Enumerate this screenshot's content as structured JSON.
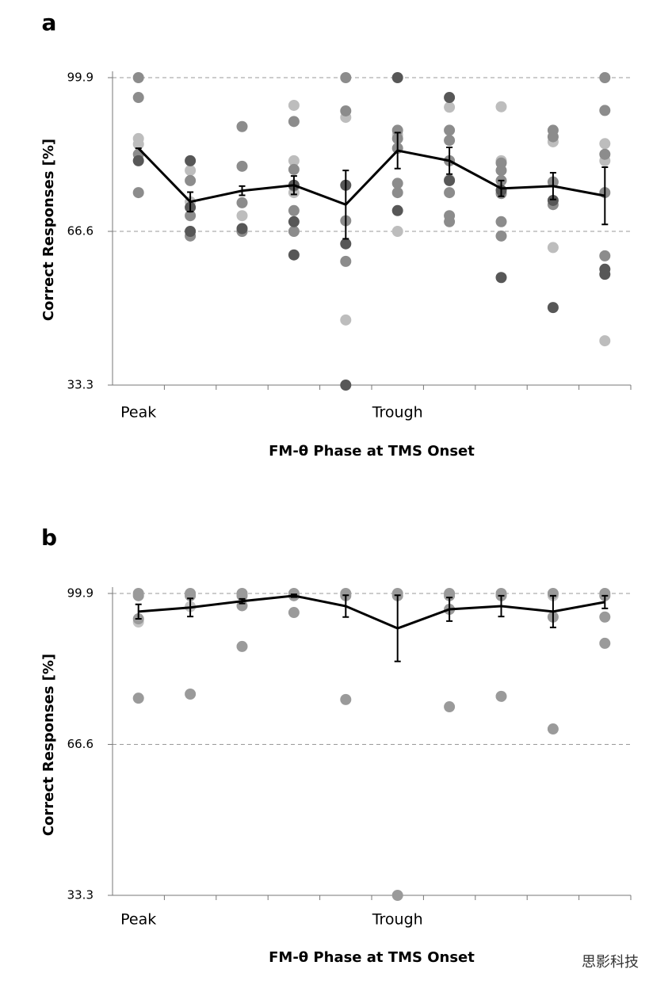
{
  "chart_data": [
    {
      "type": "line",
      "panel_label": "a",
      "x_label": "FM-θ Phase at TMS Onset",
      "y_label": "Correct Responses [%]",
      "categories": [
        "Peak",
        null,
        null,
        null,
        null,
        "Trough",
        null,
        null,
        null,
        null
      ],
      "ylim": [
        33.3,
        99.9
      ],
      "yticks": [
        33.3,
        66.6,
        99.9
      ],
      "grid": true,
      "mean": {
        "color": "#000000",
        "values": [
          84.6,
          73.0,
          75.4,
          76.6,
          72.4,
          84.1,
          81.9,
          75.9,
          76.4,
          74.3
        ],
        "errors": [
          0,
          2.1,
          1.0,
          2.0,
          7.4,
          3.9,
          2.9,
          1.7,
          2.9,
          6.2
        ]
      },
      "dots": [
        {
          "color": "#bdbdbd",
          "values": [
            [
              86.7,
              85.5
            ],
            [
              79.8,
              73.0
            ],
            [
              70.0,
              66.6
            ],
            [
              93.9,
              81.9,
              75.0
            ],
            [
              91.3,
              47.4
            ],
            [
              87.5,
              66.6
            ],
            [
              93.5,
              77.8
            ],
            [
              93.6,
              81.9
            ],
            [
              86.0,
              63.1
            ],
            [
              85.6,
              81.9,
              42.9
            ]
          ]
        },
        {
          "color": "#8c8c8c",
          "values": [
            [
              99.9,
              95.6,
              83.3,
              75.0
            ],
            [
              77.6,
              70.0,
              65.6
            ],
            [
              89.3,
              80.7,
              72.8,
              66.6
            ],
            [
              90.4,
              80.0,
              76.4,
              71.1,
              66.6
            ],
            [
              99.9,
              92.7,
              68.9,
              60.1
            ],
            [
              88.5,
              86.7,
              84.6,
              77.0,
              75.0
            ],
            [
              88.5,
              86.3,
              81.9,
              75.0,
              70.0,
              68.7
            ],
            [
              81.4,
              79.8,
              77.6,
              74.8,
              68.7,
              65.6
            ],
            [
              88.5,
              87.1,
              77.3,
              72.4
            ],
            [
              99.9,
              92.8,
              83.3,
              75.0,
              61.3
            ]
          ]
        },
        {
          "color": "#575757",
          "values": [
            [
              81.9
            ],
            [
              81.9,
              71.8,
              66.6
            ],
            [
              67.2
            ],
            [
              76.6,
              68.7,
              61.5
            ],
            [
              76.6,
              63.9,
              33.3
            ],
            [
              99.9,
              71.1
            ],
            [
              95.6,
              77.6
            ],
            [
              75.5,
              56.6
            ],
            [
              73.3,
              50.1
            ],
            [
              58.4,
              57.3
            ]
          ]
        }
      ]
    },
    {
      "type": "line",
      "panel_label": "b",
      "x_label": "FM-θ Phase at TMS Onset",
      "y_label": "Correct Responses [%]",
      "categories": [
        "Peak",
        null,
        null,
        null,
        null,
        "Trough",
        null,
        null,
        null,
        null
      ],
      "ylim": [
        33.3,
        99.9
      ],
      "yticks": [
        33.3,
        66.6,
        99.9
      ],
      "grid": true,
      "mean": {
        "color": "#000000",
        "values": [
          95.9,
          96.8,
          98.2,
          99.4,
          97.1,
          92.2,
          96.4,
          97.1,
          95.9,
          98.0
        ],
        "errors": [
          1.6,
          2.0,
          0.5,
          0.3,
          2.4,
          7.3,
          2.6,
          2.3,
          3.5,
          1.4
        ]
      },
      "dots": [
        {
          "color": "#c4c4c4",
          "values": [
            [
              93.6
            ],
            [
              97.0
            ],
            [],
            [],
            [],
            [],
            [],
            [],
            [
              99.4
            ],
            []
          ]
        },
        {
          "color": "#9a9a9a",
          "values": [
            [
              99.9,
              99.4,
              94.3,
              76.8
            ],
            [
              99.9,
              99.4,
              77.7
            ],
            [
              99.9,
              99.4,
              97.2,
              88.2
            ],
            [
              99.9,
              99.4,
              95.7
            ],
            [
              99.9,
              99.4,
              76.5
            ],
            [
              99.9,
              99.4,
              33.3
            ],
            [
              99.9,
              99.4,
              96.4,
              74.9
            ],
            [
              99.9,
              99.4,
              77.2
            ],
            [
              99.9,
              94.7,
              70.0
            ],
            [
              99.9,
              99.4,
              94.7,
              88.9
            ]
          ]
        }
      ]
    }
  ],
  "watermark": "思影科技"
}
